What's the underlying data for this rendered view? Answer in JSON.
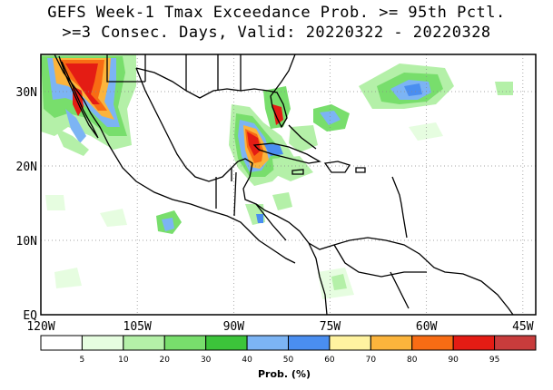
{
  "title": {
    "line1": "GEFS Week-1 Tmax Exceedance Prob. >= 95th Pctl.",
    "line2": ">=3 Consec. Days, Valid: 20220322 - 20220328"
  },
  "axes": {
    "lon_labels": [
      "120W",
      "105W",
      "90W",
      "75W",
      "60W",
      "45W"
    ],
    "lon_values": [
      -120,
      -105,
      -90,
      -75,
      -60,
      -45
    ],
    "lat_labels": [
      "EQ",
      "10N",
      "20N",
      "30N"
    ],
    "lat_values": [
      0,
      10,
      20,
      30
    ],
    "lon_range": [
      -120,
      -43
    ],
    "lat_range": [
      0,
      35
    ],
    "grid": "dotted"
  },
  "colorbar": {
    "title": "Prob. (%)",
    "tick_labels": [
      "5",
      "10",
      "20",
      "30",
      "40",
      "50",
      "60",
      "70",
      "80",
      "90",
      "95"
    ],
    "colors": [
      "#ffffff",
      "#e6fde0",
      "#b4f0a8",
      "#78de6c",
      "#3cc43a",
      "#7cb4f4",
      "#4a8ef0",
      "#fff3a0",
      "#fbb43c",
      "#f86c14",
      "#e41c14",
      "#c83c3c"
    ]
  }
}
